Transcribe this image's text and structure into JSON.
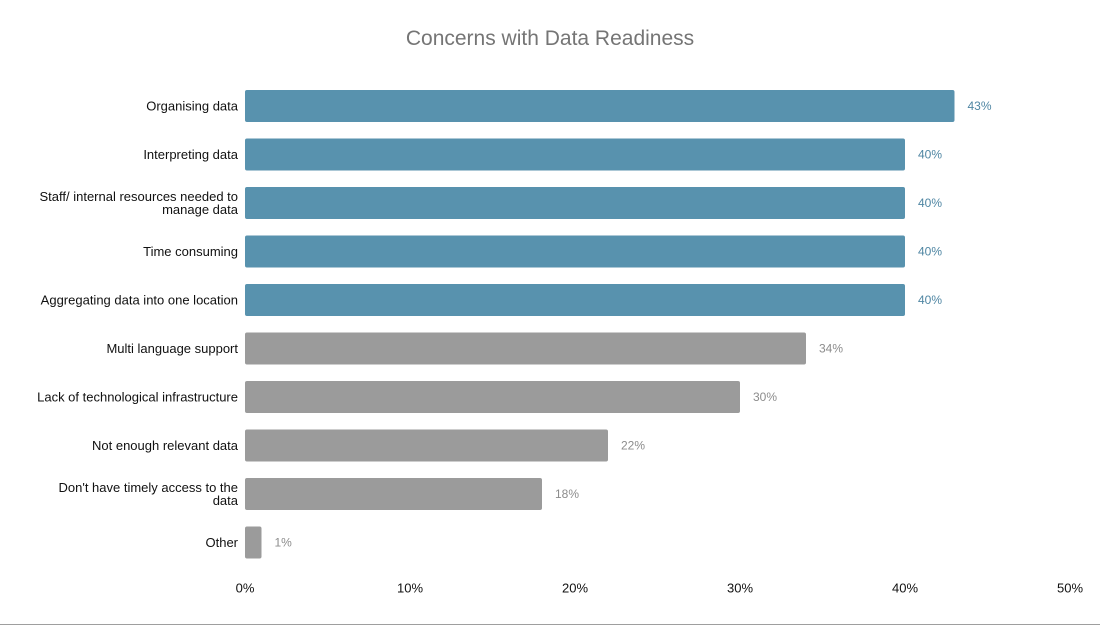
{
  "chart_data": {
    "type": "bar",
    "orientation": "horizontal",
    "title": "Concerns with Data Readiness",
    "xlabel": "",
    "ylabel": "",
    "xlim": [
      0,
      50
    ],
    "x_ticks": [
      "0%",
      "10%",
      "20%",
      "30%",
      "40%",
      "50%"
    ],
    "tick_values": [
      0,
      10,
      20,
      30,
      40,
      50
    ],
    "grid": false,
    "legend": "none",
    "categories": [
      [
        "Organising data"
      ],
      [
        "Interpreting data"
      ],
      [
        "Staff/ internal resources needed to",
        "manage data"
      ],
      [
        "Time consuming"
      ],
      [
        "Aggregating data into one location"
      ],
      [
        "Multi language support"
      ],
      [
        "Lack of technological infrastructure"
      ],
      [
        "Not enough relevant data"
      ],
      [
        "Don't have timely access to the",
        "data"
      ],
      [
        "Other"
      ]
    ],
    "values": [
      43,
      40,
      40,
      40,
      40,
      34,
      30,
      22,
      18,
      1
    ],
    "value_labels": [
      "43%",
      "40%",
      "40%",
      "40%",
      "40%",
      "34%",
      "30%",
      "22%",
      "18%",
      "1%"
    ],
    "bar_colors": [
      "#5892ae",
      "#5892ae",
      "#5892ae",
      "#5892ae",
      "#5892ae",
      "#9b9b9b",
      "#9b9b9b",
      "#9b9b9b",
      "#9b9b9b",
      "#9b9b9b"
    ],
    "label_colors": [
      "#4f86a3",
      "#4f86a3",
      "#4f86a3",
      "#4f86a3",
      "#4f86a3",
      "#8c8c8c",
      "#8c8c8c",
      "#8c8c8c",
      "#8c8c8c",
      "#8c8c8c"
    ]
  }
}
